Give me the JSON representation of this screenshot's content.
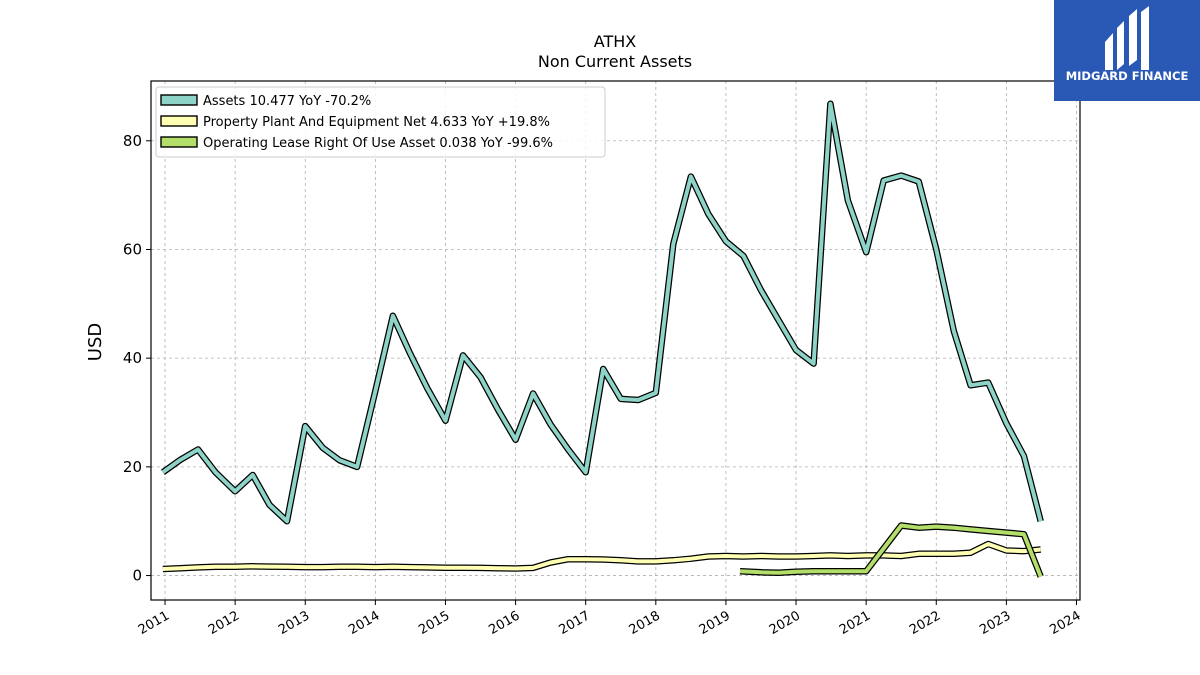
{
  "chart_data": {
    "type": "line",
    "title": "ATHX",
    "subtitle": "Non Current  Assets",
    "ylabel": "USD",
    "xlabel": "",
    "xlim": [
      2010.8,
      2024.05
    ],
    "ylim": [
      -4.5,
      91
    ],
    "xticks": [
      2011,
      2012,
      2013,
      2014,
      2015,
      2016,
      2017,
      2018,
      2019,
      2020,
      2021,
      2022,
      2023,
      2024
    ],
    "xtick_labels": [
      "2011",
      "2012",
      "2013",
      "2014",
      "2015",
      "2016",
      "2017",
      "2018",
      "2019",
      "2020",
      "2021",
      "2022",
      "2023",
      "2024"
    ],
    "yticks": [
      0,
      20,
      40,
      60,
      80
    ],
    "ytick_labels": [
      "0",
      "20",
      "40",
      "60",
      "80"
    ],
    "grid": true,
    "legend_position": "top-left",
    "series": [
      {
        "name": "Assets  10.477 YoY -70.2%",
        "color": "#8dd3c7",
        "x": [
          2010.97,
          2011.22,
          2011.47,
          2011.72,
          2012.0,
          2012.25,
          2012.49,
          2012.74,
          2013.0,
          2013.25,
          2013.49,
          2013.74,
          2014.0,
          2014.25,
          2014.49,
          2014.74,
          2015.0,
          2015.25,
          2015.5,
          2015.75,
          2016.0,
          2016.25,
          2016.5,
          2016.75,
          2017.0,
          2017.25,
          2017.5,
          2017.75,
          2018.0,
          2018.25,
          2018.5,
          2018.75,
          2019.0,
          2019.25,
          2019.5,
          2019.75,
          2020.0,
          2020.25,
          2020.49,
          2020.74,
          2021.0,
          2021.25,
          2021.5,
          2021.75,
          2022.0,
          2022.25,
          2022.49,
          2022.74,
          2023.0,
          2023.25,
          2023.49
        ],
        "y": [
          19,
          21.3,
          23.2,
          19,
          15.5,
          18.5,
          13,
          10,
          27.5,
          23.5,
          21.2,
          20,
          34,
          47.8,
          41,
          34.5,
          28.5,
          40.5,
          36.5,
          30.5,
          25,
          33.5,
          27.8,
          23.2,
          19,
          38,
          32.5,
          32.3,
          33.6,
          61,
          73.4,
          66.5,
          61.5,
          58.8,
          52.5,
          47,
          41.5,
          39,
          86.8,
          69,
          59.5,
          72.7,
          73.6,
          72.5,
          60,
          45,
          35,
          35.5,
          28,
          22,
          10
        ]
      },
      {
        "name": "Property Plant And Equipment Net  4.633 YoY +19.8%",
        "color": "#ffffb3",
        "x": [
          2010.97,
          2011.22,
          2011.47,
          2011.72,
          2012.0,
          2012.25,
          2012.49,
          2012.74,
          2013.0,
          2013.25,
          2013.49,
          2013.74,
          2014.0,
          2014.25,
          2014.49,
          2014.74,
          2015.0,
          2015.25,
          2015.5,
          2015.75,
          2016.0,
          2016.25,
          2016.5,
          2016.75,
          2017.0,
          2017.25,
          2017.5,
          2017.75,
          2018.0,
          2018.25,
          2018.5,
          2018.75,
          2019.0,
          2019.25,
          2019.5,
          2019.75,
          2020.0,
          2020.25,
          2020.49,
          2020.74,
          2021.0,
          2021.25,
          2021.5,
          2021.75,
          2022.0,
          2022.25,
          2022.49,
          2022.74,
          2023.0,
          2023.25,
          2023.49
        ],
        "y": [
          1.2,
          1.35,
          1.5,
          1.6,
          1.6,
          1.7,
          1.65,
          1.6,
          1.55,
          1.55,
          1.6,
          1.6,
          1.55,
          1.6,
          1.55,
          1.5,
          1.45,
          1.45,
          1.4,
          1.35,
          1.3,
          1.4,
          2.4,
          3.0,
          3.0,
          2.95,
          2.8,
          2.6,
          2.6,
          2.8,
          3.1,
          3.5,
          3.6,
          3.5,
          3.6,
          3.5,
          3.5,
          3.6,
          3.7,
          3.6,
          3.7,
          3.7,
          3.6,
          4.0,
          4.0,
          4.0,
          4.2,
          5.8,
          4.6,
          4.5,
          4.8
        ]
      },
      {
        "name": "Operating Lease Right Of Use Asset  0.038 YoY -99.6%",
        "color": "#b3de69",
        "x": [
          2019.2,
          2019.5,
          2019.75,
          2020.0,
          2020.25,
          2020.49,
          2020.74,
          2021.0,
          2021.25,
          2021.5,
          2021.75,
          2022.0,
          2022.25,
          2022.49,
          2022.74,
          2023.0,
          2023.25,
          2023.49
        ],
        "y": [
          0.8,
          0.6,
          0.5,
          0.7,
          0.8,
          0.8,
          0.8,
          0.8,
          5.0,
          9.2,
          8.8,
          9.0,
          8.8,
          8.5,
          8.2,
          7.9,
          7.6,
          -0.2
        ]
      }
    ]
  },
  "brand": {
    "name": "MIDGARD FINANCE",
    "bg_color": "#2a59b5",
    "icon": "midgard-logo-icon"
  }
}
